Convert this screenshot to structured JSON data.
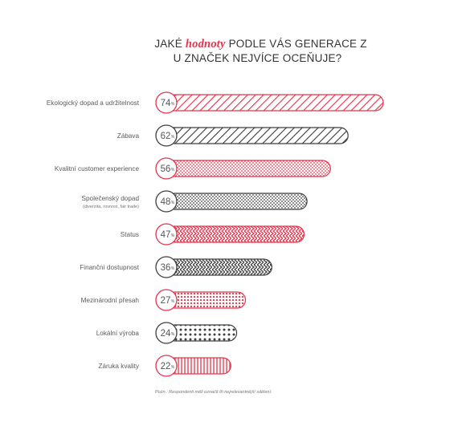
{
  "title": {
    "prefix": "JAKÉ",
    "highlight": "hodnoty",
    "middle": "PODLE VÁS GENERACE Z",
    "line2": "U ZNAČEK NEJVÍCE OCEŇUJE?"
  },
  "note": "Pozn.: Respondenti měli označit tři nejrelevantnější sdělení.",
  "colors": {
    "red": "#e8334a",
    "dark": "#3f3f3f",
    "label": "#5a5a5a"
  },
  "chart_data": {
    "type": "bar",
    "orientation": "horizontal",
    "unit": "%",
    "categories": [
      "Ekologický dopad a udržitelnost",
      "Zábava",
      "Kvalitní customer experience",
      "Společenský dopad",
      "Status",
      "Finanční dostupnost",
      "Mezinárodní přesah",
      "Lokální výroba",
      "Záruka kvality"
    ],
    "sublabels": [
      "",
      "",
      "",
      "(diverzita, rovnost, fair trade)",
      "",
      "",
      "",
      "",
      ""
    ],
    "values": [
      74,
      62,
      56,
      48,
      47,
      36,
      27,
      24,
      22
    ],
    "bar_colors": [
      "red",
      "dark",
      "red",
      "dark",
      "red",
      "dark",
      "red",
      "dark",
      "red"
    ],
    "patterns": [
      "diagonal",
      "diagonal",
      "dots",
      "dots",
      "zigzag",
      "zigzag",
      "grid-dots",
      "grid-dots",
      "vertical-lines"
    ],
    "xlim": [
      0,
      74
    ]
  }
}
